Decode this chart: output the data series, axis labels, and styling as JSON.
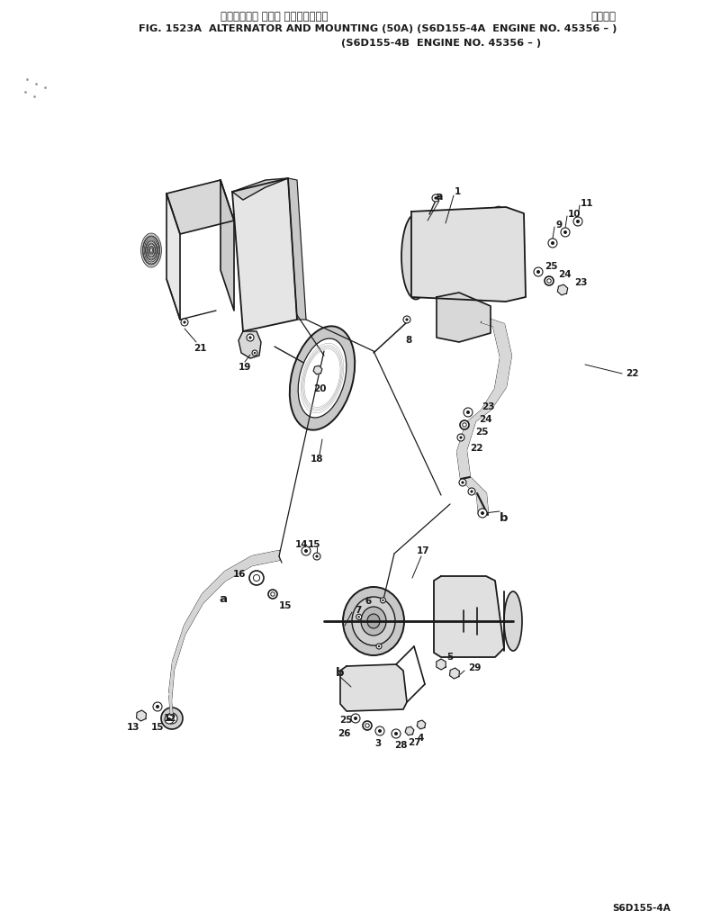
{
  "title_japanese": "オルタネータ および マウンティング",
  "title_right_japanese": "通用号機",
  "title_line1": "FIG. 1523A  ALTERNATOR AND MOUNTING (50A) (S6D155-4A  ENGINE NO. 45356 – )",
  "title_line2": "(S6D155-4B  ENGINE NO. 45356 – )",
  "footer": "S6D155-4A",
  "bg_color": "#ffffff",
  "lc": "#1a1a1a",
  "fig_width": 7.81,
  "fig_height": 10.22,
  "dpi": 100
}
